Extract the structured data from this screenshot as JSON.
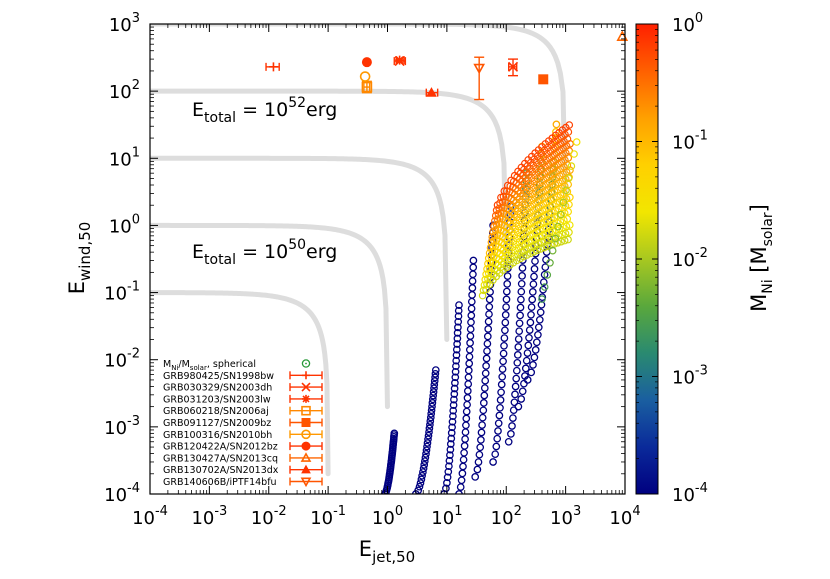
{
  "chart_data": {
    "type": "scatter",
    "xscale": "log",
    "yscale": "log",
    "xlim": [
      0.0001,
      10000
    ],
    "ylim": [
      0.0001,
      1000
    ],
    "xlabel": {
      "main": "E",
      "sub": "jet,50"
    },
    "ylabel": {
      "main": "E",
      "sub": "wind,50"
    },
    "x_ticks": [
      {
        "value": 0.0001,
        "base": "10",
        "exp": "-4"
      },
      {
        "value": 0.001,
        "base": "10",
        "exp": "-3"
      },
      {
        "value": 0.01,
        "base": "10",
        "exp": "-2"
      },
      {
        "value": 0.1,
        "base": "10",
        "exp": "-1"
      },
      {
        "value": 1,
        "base": "10",
        "exp": "0"
      },
      {
        "value": 10,
        "base": "10",
        "exp": "1"
      },
      {
        "value": 100,
        "base": "10",
        "exp": "2"
      },
      {
        "value": 1000,
        "base": "10",
        "exp": "3"
      },
      {
        "value": 10000,
        "base": "10",
        "exp": "4"
      }
    ],
    "y_ticks": [
      {
        "value": 0.0001,
        "base": "10",
        "exp": "-4"
      },
      {
        "value": 0.001,
        "base": "10",
        "exp": "-3"
      },
      {
        "value": 0.01,
        "base": "10",
        "exp": "-2"
      },
      {
        "value": 0.1,
        "base": "10",
        "exp": "-1"
      },
      {
        "value": 1,
        "base": "10",
        "exp": "0"
      },
      {
        "value": 10,
        "base": "10",
        "exp": "1"
      },
      {
        "value": 100,
        "base": "10",
        "exp": "2"
      },
      {
        "value": 1000,
        "base": "10",
        "exp": "3"
      }
    ],
    "etotal_curves": [
      0.1,
      1,
      10,
      100,
      1000
    ],
    "etotal_curve_color": "#dddddd",
    "annotations": [
      {
        "main": "E",
        "sub": "total",
        "mid": " = 10",
        "sup": "52",
        "tail": "erg",
        "at": [
          0.1,
          60
        ]
      },
      {
        "main": "E",
        "sub": "total",
        "mid": " = 10",
        "sup": "50",
        "tail": "erg",
        "at": [
          0.1,
          0.6
        ]
      }
    ],
    "colorbar": {
      "label_main": "M",
      "label_sub": "Ni",
      "label_rest": " [M",
      "label_sub2": "solar",
      "label_end": "]",
      "range": [
        0.0001,
        1
      ],
      "scale": "log",
      "ticks": [
        {
          "value": 1,
          "base": "10",
          "exp": "0"
        },
        {
          "value": 0.1,
          "base": "10",
          "exp": "-1"
        },
        {
          "value": 0.01,
          "base": "10",
          "exp": "-2"
        },
        {
          "value": 0.001,
          "base": "10",
          "exp": "-3"
        },
        {
          "value": 0.0001,
          "base": "10",
          "exp": "-4"
        }
      ],
      "colors": [
        "#000080",
        "#0a2a9a",
        "#1a5fa0",
        "#2a8a70",
        "#5aa83c",
        "#a8c820",
        "#f2e600",
        "#ffd000",
        "#ffa000",
        "#ff6000",
        "#ff2000"
      ]
    },
    "legend": {
      "header": {
        "main": "M",
        "sub1": "Ni",
        "mid": "/M",
        "sub2": "solar",
        "tail": ", spherical",
        "marker": "circle-dot",
        "color": "#2a9a3a"
      },
      "entries": [
        {
          "label": "GRB980425/SN1998bw",
          "marker": "plus",
          "color": "#ff3300"
        },
        {
          "label": "GRB030329/SN2003dh",
          "marker": "cross",
          "color": "#ff3300"
        },
        {
          "label": "GRB031203/SN2003lw",
          "marker": "star",
          "color": "#ff3300"
        },
        {
          "label": "GRB060218/SN2006aj",
          "marker": "square-open",
          "color": "#ff8800"
        },
        {
          "label": "GRB091127/SN2009bz",
          "marker": "square-filled",
          "color": "#ff5500"
        },
        {
          "label": "GRB100316/SN2010bh",
          "marker": "circle-open",
          "color": "#ff9900"
        },
        {
          "label": "GRB120422A/SN2012bz",
          "marker": "circle-filled",
          "color": "#ff3300"
        },
        {
          "label": "GRB130427A/SN2013cq",
          "marker": "triangle-open",
          "color": "#ff6600"
        },
        {
          "label": "GRB130702A/SN2013dx",
          "marker": "triangle-filled",
          "color": "#ff3300"
        },
        {
          "label": "GRB140606B/iPTF14bfu",
          "marker": "triangle-down-open",
          "color": "#ff5500"
        }
      ]
    },
    "observations": [
      {
        "name": "GRB980425/SN1998bw",
        "x": 0.012,
        "y": 230,
        "xerr": [
          0.009,
          0.015
        ],
        "marker": "plus",
        "color": "#ff3300"
      },
      {
        "name": "GRB030329/SN2003dh",
        "x": 1.6,
        "y": 280,
        "xerr": [
          1.3,
          2.0
        ],
        "marker": "cross",
        "color": "#ff3300"
      },
      {
        "name": "GRB031203/SN2003lw",
        "x": 1.6,
        "y": 290,
        "xerr": [
          1.4,
          1.9
        ],
        "marker": "star",
        "color": "#ff3300"
      },
      {
        "name": "GRB060218/SN2006aj",
        "x": 0.45,
        "y": 115,
        "xerr": [
          0.4,
          0.5
        ],
        "yerr": [
          95,
          140
        ],
        "marker": "square-open",
        "color": "#ff8800"
      },
      {
        "name": "GRB091127/SN2009bz",
        "x": 420,
        "y": 150,
        "marker": "square-filled",
        "color": "#ff5500"
      },
      {
        "name": "GRB100316/SN2010bh",
        "x": 0.42,
        "y": 165,
        "marker": "circle-open",
        "color": "#ff9900"
      },
      {
        "name": "GRB120422A/SN2012bz",
        "x": 0.45,
        "y": 270,
        "marker": "circle-filled",
        "color": "#ff3300"
      },
      {
        "name": "GRB130427A/SN2013cq",
        "x": 9000,
        "y": 650,
        "marker": "triangle-open",
        "color": "#ff6600"
      },
      {
        "name": "GRB130702A/SN2013dx",
        "x": 5.5,
        "y": 95,
        "xerr": [
          4.5,
          7.0
        ],
        "marker": "triangle-filled",
        "color": "#ff3300"
      },
      {
        "name": "GRB140606B/iPTF14bfu",
        "x": 35,
        "y": 220,
        "yerr": [
          75,
          320
        ],
        "marker": "triangle-down-open",
        "color": "#ff5500"
      },
      {
        "name": "unnamed",
        "x": 130,
        "y": 230,
        "xerr": [
          110,
          150
        ],
        "yerr": [
          170,
          300
        ],
        "marker": "cross",
        "color": "#ff3300"
      }
    ],
    "model_fans": [
      {
        "x_start": 0.9,
        "y_start": 0.0001,
        "x_end": 1.3,
        "y_end": 0.0008
      },
      {
        "x_start": 3,
        "y_start": 0.0001,
        "x_end": 6.5,
        "y_end": 0.007
      },
      {
        "x_start": 9,
        "y_start": 0.0001,
        "x_end": 16,
        "y_end": 0.065
      },
      {
        "x_start": 16,
        "y_start": 0.0001,
        "x_end": 28,
        "y_end": 0.3
      },
      {
        "x_start": 30,
        "y_start": 0.00018,
        "x_end": 60,
        "y_end": 1.0
      },
      {
        "x_start": 60,
        "y_start": 0.0003,
        "x_end": 120,
        "y_end": 2.5
      },
      {
        "x_start": 110,
        "y_start": 0.0006,
        "x_end": 220,
        "y_end": 6
      },
      {
        "x_start": 160,
        "y_start": 0.002,
        "x_end": 400,
        "y_end": 15
      },
      {
        "x_start": 230,
        "y_start": 0.005,
        "x_end": 700,
        "y_end": 32
      }
    ]
  }
}
